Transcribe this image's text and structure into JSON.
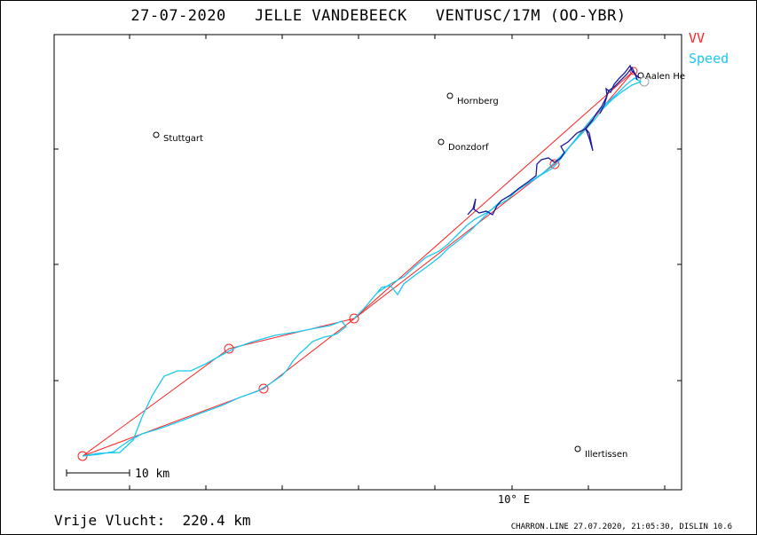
{
  "title": "27-07-2020   JELLE VANDEBEECK   VENTUSC/17M (OO-YBR)",
  "legend": {
    "items": [
      {
        "label": "VV",
        "color": "#ff2020"
      },
      {
        "label": "Speed",
        "color": "#19c8f0"
      }
    ]
  },
  "axis": {
    "x_label": "10° E"
  },
  "scale_bar": {
    "label": "10  km"
  },
  "places": [
    {
      "name": "Stuttgart"
    },
    {
      "name": "Hornberg"
    },
    {
      "name": "Donzdorf"
    },
    {
      "name": "Aalen He"
    },
    {
      "name": "Illertissen"
    }
  ],
  "footer": {
    "distance": "Vrije Vlucht:  220.4 km",
    "credit": "CHARRON.LINE 27.07.2020, 21:05:30, DISLIN 10.6"
  },
  "colors": {
    "task_line": "#ff2020",
    "track_fast": "#19c8f0",
    "track_slow": "#1a1a9a",
    "frame": "#000000"
  }
}
